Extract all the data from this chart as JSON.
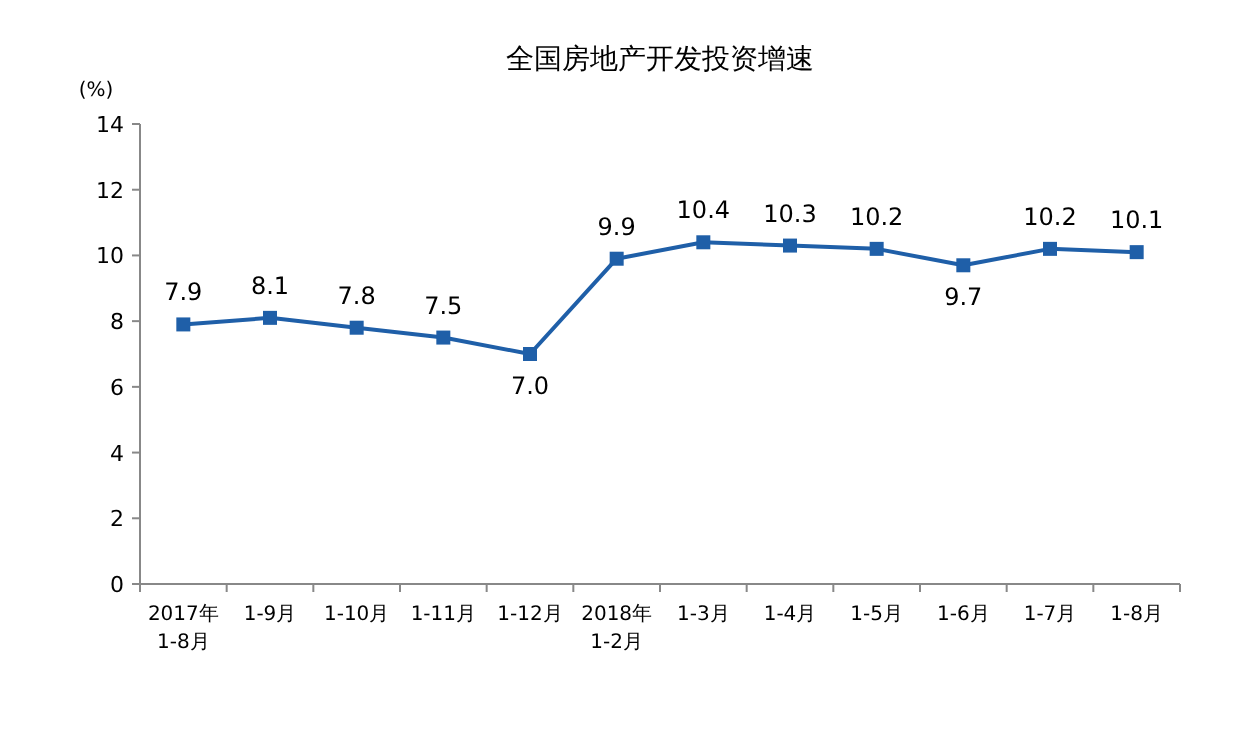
{
  "chart_data": {
    "type": "line",
    "title": "全国房地产开发投资增速",
    "ylabel": "(%)",
    "categories": [
      "2017年\n1-8月",
      "1-9月",
      "1-10月",
      "1-11月",
      "1-12月",
      "2018年\n1-2月",
      "1-3月",
      "1-4月",
      "1-5月",
      "1-6月",
      "1-7月",
      "1-8月"
    ],
    "series": [
      {
        "color": "#1f5fa8",
        "values": [
          7.9,
          8.1,
          7.8,
          7.5,
          7.0,
          9.9,
          10.4,
          10.3,
          10.2,
          9.7,
          10.2,
          10.1
        ],
        "value_labels": [
          "7.9",
          "8.1",
          "7.8",
          "7.5",
          "7.0",
          "9.9",
          "10.4",
          "10.3",
          "10.2",
          "9.7",
          "10.2",
          "10.1"
        ]
      }
    ],
    "ylim": [
      0,
      14
    ],
    "yticks": [
      0,
      2,
      4,
      6,
      8,
      10,
      12,
      14
    ],
    "grid": false,
    "marker": "square",
    "line_style": "solid"
  }
}
